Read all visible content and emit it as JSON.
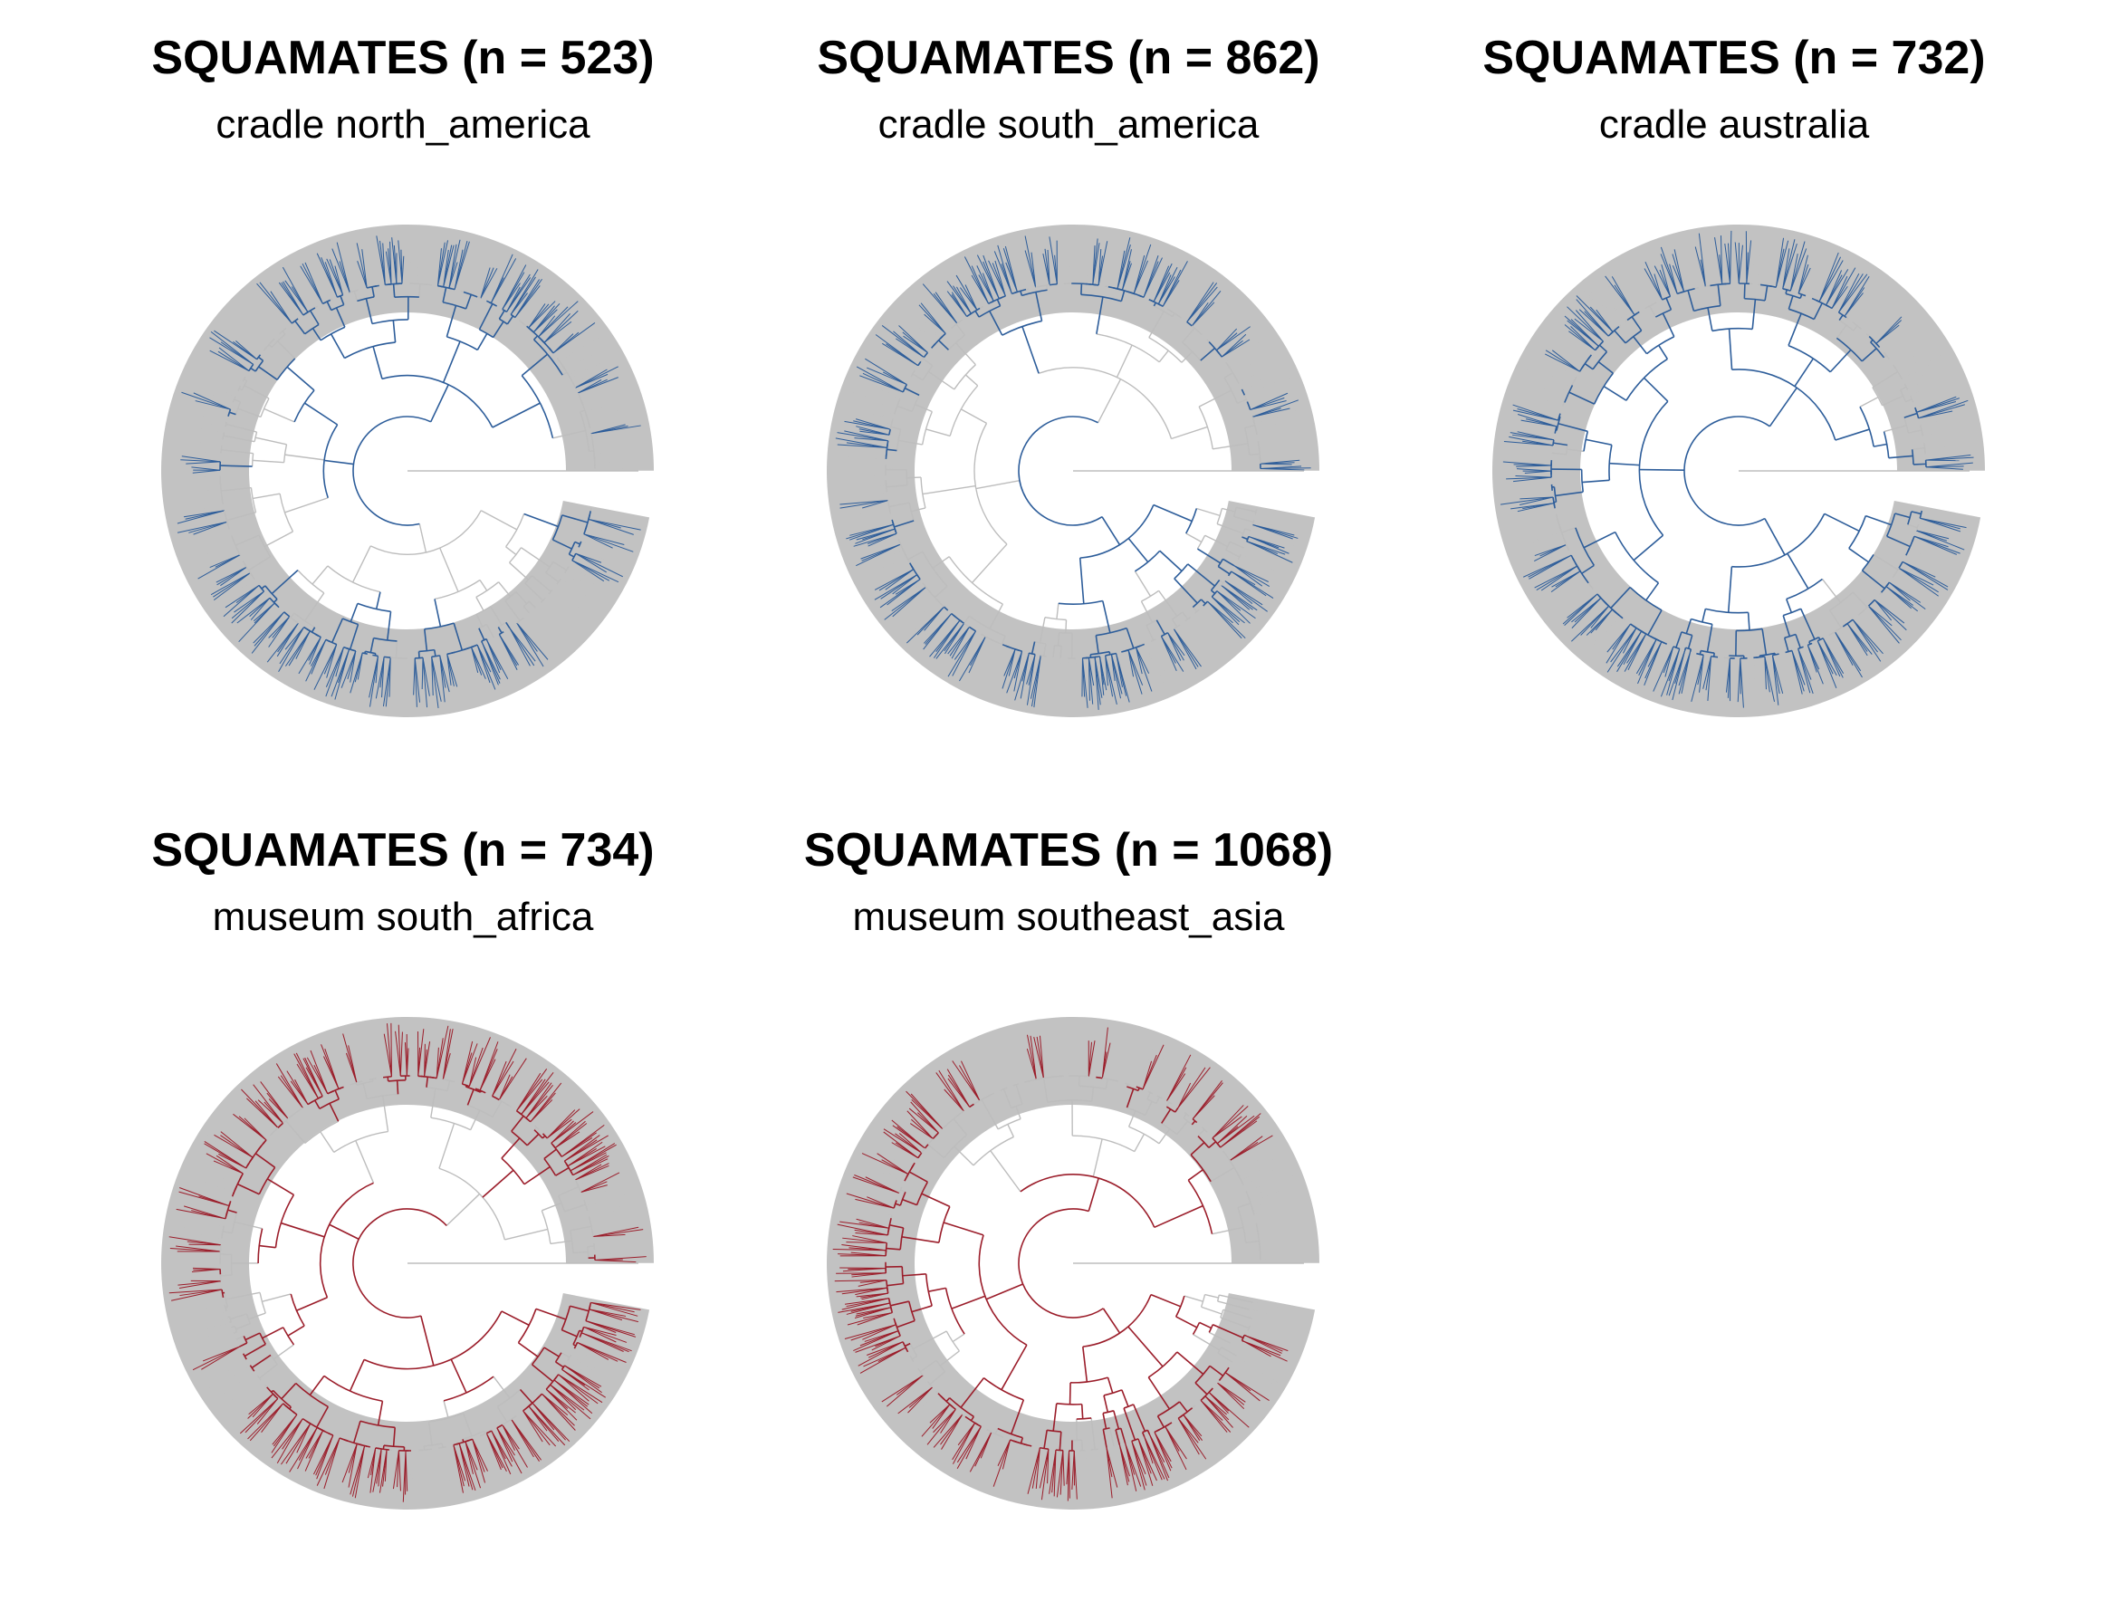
{
  "colors": {
    "background": "#ffffff",
    "tip_fan": "#c2c2c2",
    "unselected_branch": "#bdbdbd",
    "cradle_highlight": "#2d5d9a",
    "museum_highlight": "#9b1d2a"
  },
  "panels": [
    {
      "title": "SQUAMATES (n = 523)",
      "subtitle": "cradle north_america",
      "category": "cradle",
      "highlight_color": "#2d5d9a",
      "seed": 11
    },
    {
      "title": "SQUAMATES (n = 862)",
      "subtitle": "cradle south_america",
      "category": "cradle",
      "highlight_color": "#2d5d9a",
      "seed": 23
    },
    {
      "title": "SQUAMATES (n = 732)",
      "subtitle": "cradle australia",
      "category": "cradle",
      "highlight_color": "#2d5d9a",
      "seed": 37
    },
    {
      "title": "SQUAMATES (n = 734)",
      "subtitle": "museum south_africa",
      "category": "museum",
      "highlight_color": "#9b1d2a",
      "seed": 41
    },
    {
      "title": "SQUAMATES (n = 1068)",
      "subtitle": "museum southeast_asia",
      "category": "museum",
      "highlight_color": "#9b1d2a",
      "seed": 53
    }
  ]
}
